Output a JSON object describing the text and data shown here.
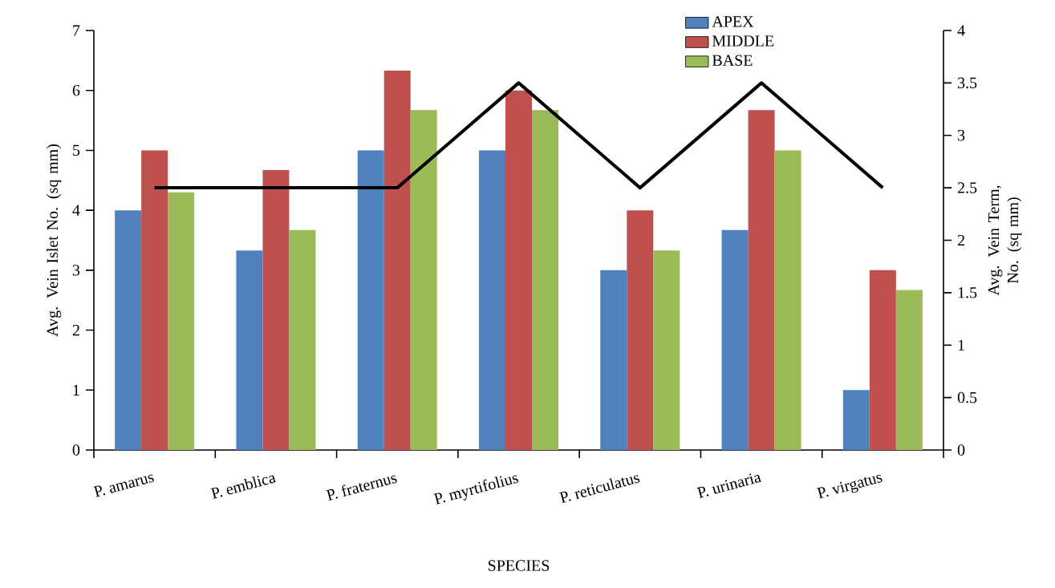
{
  "chart_data": {
    "type": "bar",
    "xlabel": "SPECIES",
    "ylabel": "Avg. Vein Islet No. (sq mm)",
    "y2label": "Avg. Vein Term, No. (sq mm)",
    "categories": [
      "P. amarus",
      "P. emblica",
      "P. fraternus",
      "P. myrtifolius",
      "P. reticulatus",
      "P. urinaria",
      "P. virgatus"
    ],
    "series": [
      {
        "name": "APEX",
        "color": "#4f81bd",
        "values": [
          4,
          3.33,
          5,
          5,
          3,
          3.67,
          1
        ]
      },
      {
        "name": "MIDDLE",
        "color": "#c0504d",
        "values": [
          5,
          4.67,
          6.33,
          6,
          4,
          5.67,
          3
        ]
      },
      {
        "name": "BASE",
        "color": "#9bbb59",
        "values": [
          4.3,
          3.67,
          5.67,
          5.67,
          3.33,
          5,
          2.67
        ]
      },
      {
        "type": "line",
        "axis": "y2",
        "color": "#000000",
        "values": [
          2.5,
          2.5,
          2.5,
          3.5,
          2.5,
          3.5,
          2.5
        ]
      }
    ],
    "ylim": [
      0,
      7
    ],
    "yticks": [
      0,
      1,
      2,
      3,
      4,
      5,
      6,
      7
    ],
    "y2lim": [
      0,
      4
    ],
    "y2ticks": [
      0,
      0.5,
      1,
      1.5,
      2,
      2.5,
      3,
      3.5,
      4
    ],
    "legend": "top right"
  }
}
